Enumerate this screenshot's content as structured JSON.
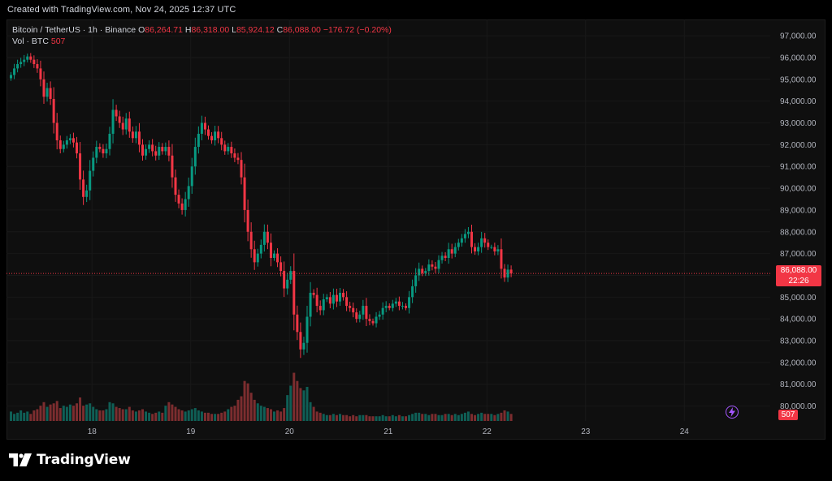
{
  "header": {
    "created": "Created with TradingView.com, Nov 24, 2025 12:37 UTC"
  },
  "legend": {
    "symbol": "Bitcoin / TetherUS · 1h · Binance",
    "o_label": "O",
    "o_value": "86,264.71",
    "h_label": "H",
    "h_value": "86,318.00",
    "l_label": "L",
    "l_value": "85,924.12",
    "c_label": "C",
    "c_value": "86,088.00",
    "change": "−176.72 (−0.20%)",
    "vol_label": "Vol · BTC",
    "vol_value": "507"
  },
  "price_label": {
    "price": "86,088.00",
    "countdown": "22:26"
  },
  "volume_label": "507",
  "brand": {
    "name": "TradingView",
    "icon": "tradingview-logo-icon"
  },
  "colors": {
    "up": "#089981",
    "down": "#f23645",
    "up_vol": "#0f5f56",
    "down_vol": "#7c2d2f",
    "background": "#0f0f0f"
  },
  "chart_data": {
    "type": "candlestick",
    "y_ticks": [
      "97,000.00",
      "96,000.00",
      "95,000.00",
      "94,000.00",
      "93,000.00",
      "92,000.00",
      "91,000.00",
      "90,000.00",
      "89,000.00",
      "88,000.00",
      "87,000.00",
      "86,000.00",
      "85,000.00",
      "84,000.00",
      "83,000.00",
      "82,000.00",
      "81,000.00",
      "80,000.00"
    ],
    "y_tick_values": [
      97000,
      96000,
      95000,
      94000,
      93000,
      92000,
      91000,
      90000,
      89000,
      88000,
      87000,
      86000,
      85000,
      84000,
      83000,
      82000,
      81000,
      80000
    ],
    "x_ticks": [
      "18",
      "19",
      "20",
      "21",
      "22",
      "23",
      "24"
    ],
    "x_tick_index": [
      25,
      55,
      85,
      115,
      145,
      175,
      205
    ],
    "ylim": [
      79500,
      97600
    ],
    "last_price": 86088,
    "closes": [
      95200,
      95500,
      95700,
      95800,
      95900,
      96050,
      95900,
      95700,
      95500,
      95000,
      94200,
      94600,
      94100,
      93000,
      92200,
      91800,
      92000,
      92200,
      92300,
      92100,
      91600,
      90400,
      89600,
      89900,
      90800,
      91400,
      91900,
      91800,
      91600,
      91800,
      92500,
      93600,
      93300,
      93000,
      92700,
      93200,
      92600,
      92300,
      92600,
      92000,
      91500,
      91800,
      92000,
      91700,
      91500,
      91900,
      91700,
      91900,
      91500,
      90500,
      89700,
      89300,
      89000,
      89500,
      90100,
      91000,
      91900,
      92500,
      93000,
      92700,
      92400,
      92200,
      92600,
      92300,
      92000,
      91700,
      91900,
      91600,
      91400,
      91300,
      90500,
      89000,
      88000,
      87200,
      86600,
      87000,
      87400,
      88000,
      87500,
      86800,
      87000,
      86600,
      86200,
      85400,
      85800,
      86200,
      84200,
      83400,
      82600,
      82900,
      84100,
      85200,
      85100,
      84600,
      84400,
      84900,
      85000,
      84700,
      85100,
      84800,
      85200,
      85000,
      84600,
      84500,
      84300,
      84000,
      84200,
      84600,
      84000,
      83900,
      83800,
      84100,
      84200,
      84500,
      84600,
      84500,
      84700,
      84800,
      84600,
      84600,
      84500,
      85000,
      85500,
      86000,
      86300,
      86100,
      86200,
      86500,
      86400,
      86300,
      86700,
      86900,
      86800,
      87200,
      87000,
      87300,
      87500,
      87700,
      87900,
      88000,
      87300,
      87100,
      87300,
      87700,
      87500,
      87300,
      87300,
      87100,
      87200,
      86300,
      85900,
      86264,
      86088
    ],
    "volumes": [
      8,
      6,
      7,
      9,
      7,
      8,
      6,
      9,
      10,
      13,
      16,
      12,
      14,
      15,
      17,
      11,
      13,
      12,
      14,
      13,
      15,
      20,
      13,
      14,
      15,
      12,
      10,
      9,
      9,
      10,
      16,
      15,
      12,
      11,
      10,
      10,
      12,
      9,
      8,
      9,
      10,
      8,
      7,
      6,
      7,
      8,
      7,
      13,
      16,
      14,
      12,
      10,
      9,
      8,
      9,
      10,
      11,
      9,
      8,
      7,
      7,
      6,
      6,
      6,
      7,
      8,
      10,
      12,
      13,
      18,
      21,
      34,
      32,
      24,
      18,
      15,
      13,
      12,
      11,
      10,
      8,
      9,
      8,
      11,
      22,
      30,
      41,
      34,
      28,
      26,
      29,
      16,
      12,
      8,
      7,
      6,
      5,
      5,
      6,
      5,
      6,
      5,
      5,
      4,
      5,
      4,
      5,
      5,
      5,
      4,
      4,
      4,
      4,
      5,
      4,
      4,
      5,
      4,
      5,
      4,
      4,
      5,
      6,
      7,
      7,
      6,
      6,
      5,
      6,
      6,
      5,
      5,
      6,
      6,
      5,
      6,
      5,
      6,
      7,
      8,
      6,
      5,
      6,
      7,
      6,
      6,
      6,
      5,
      6,
      7,
      9,
      8,
      6
    ]
  }
}
